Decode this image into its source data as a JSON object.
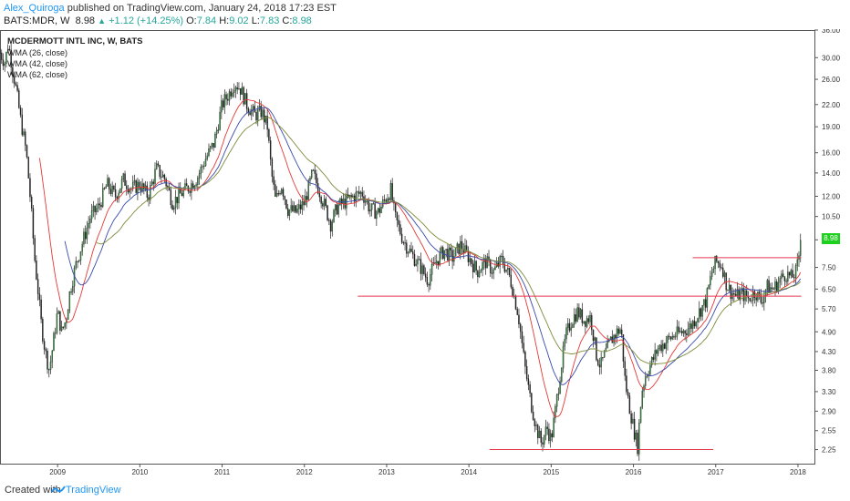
{
  "header": {
    "author": "Alex_Quiroga",
    "published_text": "published on TradingView.com, January 24, 2018 17:23 EST",
    "symbol": "BATS:MDR, W",
    "last": "8.98",
    "change": "+1.12 (+14.25%)",
    "o_label": "O:",
    "o_value": "7.84",
    "h_label": "H:",
    "h_value": "9.02",
    "l_label": "L:",
    "l_value": "7.83",
    "c_label": "C:",
    "c_value": "8.98",
    "up_icon": "triangle-up-icon"
  },
  "legend": {
    "title": "MCDERMOTT INTL INC, W, BATS",
    "items": [
      "WMA (26, close)",
      "WMA (42, close)",
      "WMA (62, close)"
    ]
  },
  "footer": {
    "created_with": "Created with",
    "brand": "TradingView"
  },
  "price_badge": "8.98",
  "colors": {
    "up_candle": "#2e8b3a",
    "down_candle": "#222222",
    "wma26": "#e53935",
    "wma42": "#3949ab",
    "wma62": "#7c8b3a",
    "hline": "#e53950",
    "accent": "#2196f3",
    "badge": "#1fd11f"
  },
  "chart_data": {
    "type": "candlestick",
    "title": "MCDERMOTT INTL INC, W, BATS",
    "scale": "log",
    "ylim": [
      2.05,
      36.0
    ],
    "xlim": [
      2008.3,
      2018.2
    ],
    "y_ticks": [
      "36.00",
      "30.00",
      "26.00",
      "22.00",
      "19.00",
      "16.00",
      "14.00",
      "12.00",
      "10.50",
      "9.00",
      "7.50",
      "6.50",
      "5.70",
      "4.90",
      "4.30",
      "3.80",
      "3.30",
      "2.90",
      "2.55",
      "2.25"
    ],
    "x_ticks": [
      "2009",
      "2010",
      "2011",
      "2012",
      "2013",
      "2014",
      "2015",
      "2016",
      "2017",
      "2018"
    ],
    "price_path": [
      [
        2008.3,
        31.0
      ],
      [
        2008.36,
        29.0
      ],
      [
        2008.4,
        33.0
      ],
      [
        2008.45,
        28.0
      ],
      [
        2008.5,
        24.0
      ],
      [
        2008.55,
        20.0
      ],
      [
        2008.62,
        16.0
      ],
      [
        2008.68,
        11.0
      ],
      [
        2008.72,
        8.0
      ],
      [
        2008.76,
        6.5
      ],
      [
        2008.8,
        5.2
      ],
      [
        2008.85,
        4.3
      ],
      [
        2008.9,
        3.8
      ],
      [
        2008.95,
        4.6
      ],
      [
        2009.0,
        5.6
      ],
      [
        2009.05,
        4.9
      ],
      [
        2009.1,
        5.3
      ],
      [
        2009.15,
        6.4
      ],
      [
        2009.22,
        7.6
      ],
      [
        2009.3,
        8.8
      ],
      [
        2009.4,
        10.5
      ],
      [
        2009.5,
        11.2
      ],
      [
        2009.6,
        13.0
      ],
      [
        2009.7,
        12.0
      ],
      [
        2009.8,
        13.4
      ],
      [
        2009.9,
        12.6
      ],
      [
        2010.0,
        13.0
      ],
      [
        2010.1,
        12.0
      ],
      [
        2010.2,
        14.4
      ],
      [
        2010.3,
        13.5
      ],
      [
        2010.4,
        11.5
      ],
      [
        2010.5,
        12.2
      ],
      [
        2010.6,
        12.8
      ],
      [
        2010.7,
        13.6
      ],
      [
        2010.8,
        15.4
      ],
      [
        2010.9,
        17.0
      ],
      [
        2011.0,
        22.0
      ],
      [
        2011.1,
        24.0
      ],
      [
        2011.15,
        25.5
      ],
      [
        2011.22,
        24.5
      ],
      [
        2011.3,
        22.0
      ],
      [
        2011.4,
        20.5
      ],
      [
        2011.48,
        21.0
      ],
      [
        2011.55,
        19.0
      ],
      [
        2011.6,
        14.0
      ],
      [
        2011.65,
        11.6
      ],
      [
        2011.72,
        13.0
      ],
      [
        2011.8,
        11.0
      ],
      [
        2011.9,
        10.8
      ],
      [
        2012.0,
        11.5
      ],
      [
        2012.1,
        14.0
      ],
      [
        2012.18,
        12.5
      ],
      [
        2012.25,
        11.2
      ],
      [
        2012.32,
        10.0
      ],
      [
        2012.4,
        11.2
      ],
      [
        2012.5,
        11.6
      ],
      [
        2012.6,
        12.0
      ],
      [
        2012.7,
        12.3
      ],
      [
        2012.8,
        11.0
      ],
      [
        2012.9,
        10.8
      ],
      [
        2013.0,
        12.0
      ],
      [
        2013.05,
        12.5
      ],
      [
        2013.1,
        10.5
      ],
      [
        2013.2,
        9.0
      ],
      [
        2013.3,
        8.2
      ],
      [
        2013.4,
        7.6
      ],
      [
        2013.5,
        6.9
      ],
      [
        2013.6,
        7.8
      ],
      [
        2013.7,
        8.4
      ],
      [
        2013.8,
        8.0
      ],
      [
        2013.9,
        8.7
      ],
      [
        2014.0,
        8.0
      ],
      [
        2014.1,
        7.3
      ],
      [
        2014.2,
        7.8
      ],
      [
        2014.3,
        7.3
      ],
      [
        2014.4,
        7.9
      ],
      [
        2014.5,
        7.0
      ],
      [
        2014.6,
        5.5
      ],
      [
        2014.68,
        3.9
      ],
      [
        2014.75,
        3.1
      ],
      [
        2014.82,
        2.6
      ],
      [
        2014.88,
        2.35
      ],
      [
        2014.95,
        2.6
      ],
      [
        2015.0,
        2.4
      ],
      [
        2015.05,
        2.9
      ],
      [
        2015.1,
        3.6
      ],
      [
        2015.18,
        4.8
      ],
      [
        2015.25,
        5.3
      ],
      [
        2015.32,
        5.6
      ],
      [
        2015.4,
        5.3
      ],
      [
        2015.48,
        5.4
      ],
      [
        2015.55,
        4.2
      ],
      [
        2015.6,
        3.9
      ],
      [
        2015.65,
        4.2
      ],
      [
        2015.72,
        4.6
      ],
      [
        2015.8,
        4.9
      ],
      [
        2015.85,
        5.0
      ],
      [
        2015.9,
        3.5
      ],
      [
        2015.95,
        3.0
      ],
      [
        2016.0,
        2.6
      ],
      [
        2016.05,
        2.3
      ],
      [
        2016.1,
        3.3
      ],
      [
        2016.15,
        3.7
      ],
      [
        2016.22,
        4.0
      ],
      [
        2016.3,
        4.4
      ],
      [
        2016.4,
        4.6
      ],
      [
        2016.5,
        4.8
      ],
      [
        2016.6,
        4.9
      ],
      [
        2016.7,
        5.1
      ],
      [
        2016.8,
        5.6
      ],
      [
        2016.88,
        6.0
      ],
      [
        2016.95,
        7.2
      ],
      [
        2017.0,
        7.8
      ],
      [
        2017.08,
        7.6
      ],
      [
        2017.12,
        6.8
      ],
      [
        2017.18,
        6.4
      ],
      [
        2017.25,
        6.2
      ],
      [
        2017.32,
        6.3
      ],
      [
        2017.4,
        6.1
      ],
      [
        2017.48,
        6.4
      ],
      [
        2017.55,
        6.0
      ],
      [
        2017.62,
        6.6
      ],
      [
        2017.7,
        6.5
      ],
      [
        2017.78,
        6.9
      ],
      [
        2017.85,
        7.2
      ],
      [
        2017.92,
        7.0
      ],
      [
        2017.98,
        7.3
      ],
      [
        2018.04,
        8.98
      ]
    ],
    "series": [
      {
        "name": "WMA (26, close)",
        "period": 26,
        "color": "#e53935"
      },
      {
        "name": "WMA (42, close)",
        "period": 42,
        "color": "#3949ab"
      },
      {
        "name": "WMA (62, close)",
        "period": 62,
        "color": "#7c8b3a"
      }
    ],
    "horizontal_lines": [
      {
        "y": 8.0,
        "x_start": 2016.72,
        "x_end": 2018.04
      },
      {
        "y": 6.2,
        "x_start": 2012.65,
        "x_end": 2018.04
      },
      {
        "y": 2.25,
        "x_start": 2014.25,
        "x_end": 2016.97
      }
    ],
    "last_value": 8.98
  }
}
